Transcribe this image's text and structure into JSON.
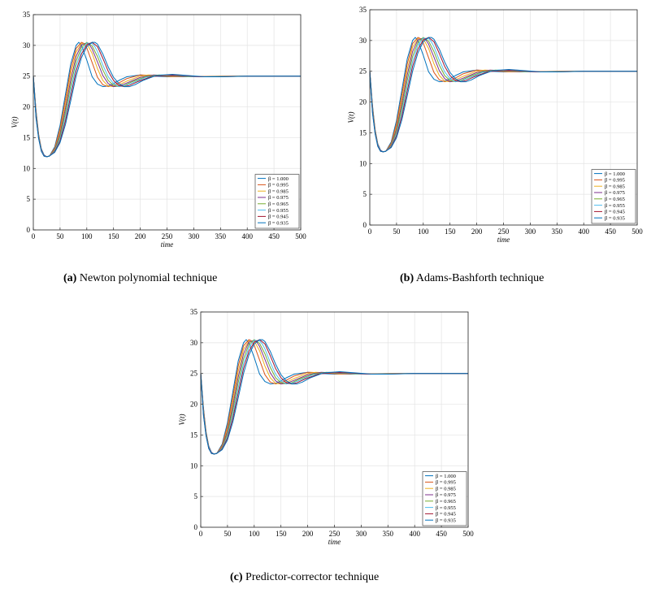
{
  "figure": {
    "captions": [
      {
        "tag": "(a)",
        "text": "Newton polynomial technique"
      },
      {
        "tag": "(b)",
        "text": "Adams-Bashforth technique"
      },
      {
        "tag": "(c)",
        "text": "Predictor-corrector technique"
      }
    ]
  },
  "chart_data": [
    {
      "type": "line",
      "panel": "a",
      "xlabel": "time",
      "ylabel": "V(t)",
      "xlim": [
        0,
        500
      ],
      "ylim": [
        0,
        35
      ],
      "xticks": [
        0,
        50,
        100,
        150,
        200,
        250,
        300,
        350,
        400,
        450,
        500
      ],
      "yticks": [
        0,
        5,
        10,
        15,
        20,
        25,
        30,
        35
      ],
      "grid": true,
      "legend": "bottom-right",
      "series": [
        {
          "name": "β = 1.000",
          "color": "#0072BD",
          "x": [
            0,
            5,
            10,
            15,
            20,
            25,
            30,
            40,
            50,
            60,
            70,
            80,
            85,
            90,
            100,
            110,
            120,
            130,
            140,
            150,
            160,
            175,
            200,
            225,
            250,
            280,
            300,
            350,
            400,
            450,
            500
          ],
          "y": [
            25,
            19.5,
            15.5,
            13.2,
            12.2,
            11.9,
            12.0,
            13.5,
            17.0,
            22.0,
            27.0,
            30.0,
            30.5,
            30.0,
            27.6,
            24.9,
            23.7,
            23.3,
            23.4,
            23.8,
            24.3,
            24.9,
            25.2,
            25.0,
            24.9,
            24.9,
            24.9,
            24.95,
            25.0,
            25.0,
            25.0
          ]
        },
        {
          "name": "β = 0.995",
          "color": "#D95319",
          "x": [
            0,
            5,
            10,
            15,
            20,
            25,
            30,
            40,
            50,
            60,
            70,
            80,
            90,
            95,
            100,
            110,
            120,
            130,
            140,
            150,
            160,
            175,
            200,
            230,
            260,
            290,
            320,
            350,
            400,
            450,
            500
          ],
          "y": [
            25,
            19.3,
            15.4,
            13.1,
            12.1,
            11.9,
            12.0,
            13.3,
            16.5,
            21.2,
            26.2,
            29.5,
            30.5,
            30.3,
            29.6,
            27.2,
            24.8,
            23.6,
            23.3,
            23.5,
            23.9,
            24.6,
            25.2,
            25.1,
            24.9,
            24.9,
            24.95,
            25.0,
            25.0,
            25.0,
            25.0
          ]
        },
        {
          "name": "β = 0.985",
          "color": "#EDB120",
          "x": [
            0,
            5,
            10,
            15,
            20,
            25,
            30,
            40,
            50,
            60,
            70,
            80,
            90,
            100,
            110,
            120,
            130,
            140,
            150,
            160,
            175,
            200,
            215,
            240,
            270,
            300,
            330,
            360,
            400,
            450,
            500
          ],
          "y": [
            25,
            19.1,
            15.3,
            13.0,
            12.1,
            11.9,
            12.0,
            13.1,
            16.0,
            20.4,
            25.3,
            28.9,
            30.3,
            30.3,
            28.7,
            26.2,
            24.3,
            23.4,
            23.3,
            23.6,
            24.2,
            25.0,
            25.2,
            25.1,
            24.9,
            24.9,
            24.95,
            25.0,
            25.0,
            25.0,
            25.0
          ]
        },
        {
          "name": "β = 0.975",
          "color": "#7E2F8E",
          "x": [
            0,
            5,
            10,
            15,
            20,
            25,
            30,
            40,
            50,
            60,
            70,
            80,
            90,
            100,
            105,
            110,
            120,
            130,
            140,
            150,
            160,
            175,
            200,
            225,
            250,
            280,
            310,
            340,
            400,
            450,
            500
          ],
          "y": [
            25,
            19.0,
            15.2,
            13.0,
            12.1,
            11.9,
            12.0,
            13.0,
            15.6,
            19.7,
            24.4,
            28.2,
            30.1,
            30.4,
            30.1,
            29.4,
            27.3,
            25.1,
            23.8,
            23.3,
            23.4,
            23.9,
            24.8,
            25.2,
            25.1,
            24.9,
            24.9,
            24.95,
            25.0,
            25.0,
            25.0
          ]
        },
        {
          "name": "β = 0.965",
          "color": "#77AC30",
          "x": [
            0,
            5,
            10,
            15,
            20,
            25,
            30,
            40,
            50,
            60,
            70,
            80,
            90,
            100,
            110,
            120,
            130,
            140,
            150,
            160,
            170,
            185,
            210,
            235,
            260,
            290,
            320,
            350,
            400,
            450,
            500
          ],
          "y": [
            25,
            18.8,
            15.1,
            12.9,
            12.0,
            11.9,
            12.0,
            12.9,
            15.2,
            19.0,
            23.5,
            27.4,
            29.7,
            30.5,
            29.9,
            28.2,
            26.0,
            24.3,
            23.5,
            23.3,
            23.5,
            24.1,
            24.9,
            25.2,
            25.1,
            24.9,
            24.9,
            24.95,
            25.0,
            25.0,
            25.0
          ]
        },
        {
          "name": "β = 0.955",
          "color": "#4DBEEE",
          "x": [
            0,
            5,
            10,
            15,
            20,
            25,
            30,
            40,
            50,
            60,
            70,
            80,
            90,
            100,
            110,
            115,
            120,
            130,
            140,
            150,
            160,
            170,
            185,
            210,
            240,
            270,
            300,
            330,
            400,
            450,
            500
          ],
          "y": [
            25,
            18.6,
            15.0,
            12.9,
            12.0,
            11.9,
            12.0,
            12.8,
            14.8,
            18.3,
            22.6,
            26.6,
            29.2,
            30.4,
            30.3,
            29.8,
            29.0,
            26.8,
            24.9,
            23.8,
            23.3,
            23.4,
            23.9,
            24.8,
            25.2,
            25.1,
            24.9,
            24.9,
            25.0,
            25.0,
            25.0
          ]
        },
        {
          "name": "β = 0.945",
          "color": "#A2142F",
          "x": [
            0,
            5,
            10,
            15,
            20,
            25,
            30,
            40,
            50,
            60,
            70,
            80,
            90,
            100,
            110,
            120,
            130,
            140,
            150,
            160,
            170,
            180,
            195,
            220,
            250,
            280,
            310,
            340,
            400,
            450,
            500
          ],
          "y": [
            25,
            18.4,
            14.9,
            12.8,
            12.0,
            11.9,
            12.0,
            12.7,
            14.5,
            17.7,
            21.8,
            25.8,
            28.6,
            30.1,
            30.5,
            29.8,
            27.9,
            25.8,
            24.3,
            23.5,
            23.3,
            23.5,
            24.1,
            24.9,
            25.2,
            25.1,
            24.9,
            24.9,
            25.0,
            25.0,
            25.0
          ]
        },
        {
          "name": "β = 0.935",
          "color": "#0072BD",
          "x": [
            0,
            5,
            10,
            15,
            20,
            25,
            30,
            40,
            50,
            60,
            70,
            80,
            90,
            100,
            110,
            115,
            120,
            130,
            140,
            150,
            160,
            170,
            180,
            190,
            205,
            230,
            260,
            290,
            320,
            350,
            400,
            450,
            500
          ],
          "y": [
            25,
            18.2,
            14.8,
            12.8,
            12.0,
            11.9,
            12.0,
            12.6,
            14.2,
            17.1,
            21.0,
            25.0,
            28.0,
            29.8,
            30.5,
            30.5,
            30.2,
            28.6,
            26.5,
            24.8,
            23.8,
            23.3,
            23.3,
            23.6,
            24.3,
            25.1,
            25.3,
            25.1,
            24.9,
            24.9,
            25.0,
            25.0,
            25.0
          ]
        }
      ]
    },
    {
      "type": "line",
      "panel": "b",
      "xlabel": "time",
      "ylabel": "V(t)",
      "xlim": [
        0,
        500
      ],
      "ylim": [
        0,
        35
      ],
      "xticks": [
        0,
        50,
        100,
        150,
        200,
        250,
        300,
        350,
        400,
        450,
        500
      ],
      "yticks": [
        0,
        5,
        10,
        15,
        20,
        25,
        30,
        35
      ],
      "grid": true,
      "legend": "bottom-right",
      "series": "same-as-panel-a"
    },
    {
      "type": "line",
      "panel": "c",
      "xlabel": "time",
      "ylabel": "V(t)",
      "xlim": [
        0,
        500
      ],
      "ylim": [
        0,
        35
      ],
      "xticks": [
        0,
        50,
        100,
        150,
        200,
        250,
        300,
        350,
        400,
        450,
        500
      ],
      "yticks": [
        0,
        5,
        10,
        15,
        20,
        25,
        30,
        35
      ],
      "grid": true,
      "legend": "bottom-right",
      "series": "same-as-panel-a"
    }
  ]
}
